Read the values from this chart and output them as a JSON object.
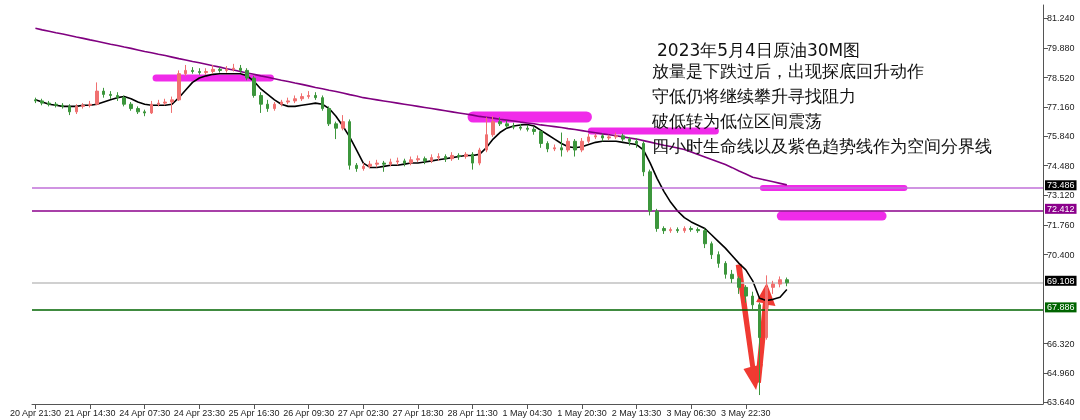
{
  "chart_data": {
    "type": "candlestick",
    "title": "2023年5月4日原油30M图",
    "annotations": [
      "放量是下跌过后，出现探底回升动作",
      "守低仍将继续攀升寻找阻力",
      "破低转为低位区间震荡",
      "四小时生命线以及紫色趋势线作为空间分界线"
    ],
    "categories": [
      "20 Apr 21:30",
      null,
      null,
      null,
      null,
      null,
      null,
      null,
      "21 Apr 14:30",
      null,
      null,
      null,
      null,
      null,
      null,
      null,
      "24 Apr 07:30",
      null,
      null,
      null,
      null,
      null,
      null,
      null,
      "24 Apr 23:30",
      null,
      null,
      null,
      null,
      null,
      null,
      null,
      "25 Apr 16:30",
      null,
      null,
      null,
      null,
      null,
      null,
      null,
      "26 Apr 09:30",
      null,
      null,
      null,
      null,
      null,
      null,
      null,
      "27 Apr 02:30",
      null,
      null,
      null,
      null,
      null,
      null,
      null,
      "27 Apr 18:30",
      null,
      null,
      null,
      null,
      null,
      null,
      null,
      "28 Apr 11:30",
      null,
      null,
      null,
      null,
      null,
      null,
      null,
      "1 May 04:30",
      null,
      null,
      null,
      null,
      null,
      null,
      null,
      "1 May 20:30",
      null,
      null,
      null,
      null,
      null,
      null,
      null,
      "2 May 13:30",
      null,
      null,
      null,
      null,
      null,
      null,
      null,
      "3 May 06:30",
      null,
      null,
      null,
      null,
      null,
      null,
      null,
      "3 May 22:30",
      null,
      null,
      null,
      null,
      null,
      null
    ],
    "series": [
      {
        "type": "candlestick",
        "colors": [
          "#3c963c",
          "#3c963c",
          "#3c963c",
          "#3c963c",
          "#3c963c",
          "#3c963c",
          "#f07070",
          "#f07070",
          "#f07070",
          "#f07070",
          "#3c963c",
          "#3c963c",
          "#3c963c",
          "#3c963c",
          "#3c963c",
          "#3c963c",
          "#3c963c",
          "#f07070",
          "#f07070",
          "#f07070",
          "#f07070",
          "#f07070",
          "#f07070",
          "#3c963c",
          "#3c963c",
          "#f07070",
          "#f07070",
          "#3c963c",
          "#f07070",
          "#f07070",
          "#3c963c",
          "#3c963c",
          "#3c963c",
          "#3c963c",
          "#3c963c",
          "#f07070",
          "#f07070",
          "#f07070",
          "#f07070",
          "#f07070",
          "#f07070",
          "#3c963c",
          "#3c963c",
          "#3c963c",
          "#3c963c",
          "#f07070",
          "#3c963c",
          "#3c963c",
          "#f07070",
          "#f07070",
          "#f07070",
          "#3c963c",
          "#f07070",
          "#f07070",
          "#3c963c",
          "#f07070",
          "#f07070",
          "#3c963c",
          "#f07070",
          "#f07070",
          "#3c963c",
          "#f07070",
          "#3c963c",
          "#f07070",
          "#3c963c",
          "#f07070",
          "#f07070",
          "#f07070",
          "#3c963c",
          "#3c963c",
          "#3c963c",
          "#3c963c",
          "#3c963c",
          "#3c963c",
          "#3c963c",
          "#3c963c",
          "#f07070",
          "#3c963c",
          "#f07070",
          "#3c963c",
          "#f07070",
          "#f07070",
          "#f07070",
          "#3c963c",
          "#f07070",
          "#f07070",
          "#3c963c",
          "#3c963c",
          "#3c963c",
          "#3c963c",
          "#3c963c",
          "#3c963c",
          "#3c963c",
          "#f07070",
          "#3c963c",
          "#f07070",
          "#3c963c",
          "#3c963c",
          "#3c963c",
          "#3c963c",
          "#3c963c",
          "#3c963c",
          "#3c963c",
          "#3c963c",
          "#3c963c",
          "#3c963c",
          "#3c963c",
          "#f07070",
          "#f07070",
          "#f07070",
          "#3c963c"
        ],
        "ohlc": [
          [
            77.5,
            77.6,
            77.35,
            77.45
          ],
          [
            77.45,
            77.55,
            77.25,
            77.35
          ],
          [
            77.35,
            77.45,
            77.2,
            77.3
          ],
          [
            77.3,
            77.4,
            77.15,
            77.25
          ],
          [
            77.25,
            77.35,
            77.1,
            77.2
          ],
          [
            77.2,
            77.3,
            76.8,
            76.95
          ],
          [
            76.95,
            77.3,
            76.85,
            77.2
          ],
          [
            77.2,
            77.35,
            77.1,
            77.25
          ],
          [
            77.25,
            77.45,
            77.15,
            77.3
          ],
          [
            77.3,
            78.3,
            77.25,
            77.9
          ],
          [
            77.9,
            78.05,
            77.6,
            77.75
          ],
          [
            77.75,
            77.9,
            77.55,
            77.7
          ],
          [
            77.7,
            77.85,
            77.45,
            77.6
          ],
          [
            77.6,
            77.7,
            77.2,
            77.3
          ],
          [
            77.3,
            77.4,
            77.0,
            77.1
          ],
          [
            77.1,
            77.2,
            76.85,
            76.95
          ],
          [
            76.95,
            77.05,
            76.75,
            76.9
          ],
          [
            76.9,
            77.45,
            76.85,
            77.3
          ],
          [
            77.3,
            77.5,
            77.2,
            77.35
          ],
          [
            77.35,
            77.55,
            77.25,
            77.4
          ],
          [
            77.4,
            77.65,
            76.9,
            77.5
          ],
          [
            77.5,
            78.85,
            77.45,
            78.7
          ],
          [
            78.7,
            79.1,
            78.6,
            78.85
          ],
          [
            78.85,
            79.0,
            78.7,
            78.8
          ],
          [
            78.8,
            78.95,
            78.65,
            78.75
          ],
          [
            78.75,
            78.95,
            78.65,
            78.8
          ],
          [
            78.8,
            79.1,
            78.7,
            78.9
          ],
          [
            78.9,
            79.0,
            78.75,
            78.85
          ],
          [
            78.85,
            79.05,
            78.75,
            78.9
          ],
          [
            78.9,
            79.15,
            78.8,
            78.95
          ],
          [
            78.95,
            79.1,
            78.75,
            78.85
          ],
          [
            78.85,
            78.95,
            78.4,
            78.5
          ],
          [
            78.5,
            78.6,
            77.6,
            77.7
          ],
          [
            77.7,
            77.85,
            76.9,
            77.3
          ],
          [
            77.3,
            77.5,
            76.95,
            77.1
          ],
          [
            77.1,
            77.4,
            77.0,
            77.3
          ],
          [
            77.3,
            77.5,
            77.2,
            77.4
          ],
          [
            77.4,
            77.6,
            77.3,
            77.45
          ],
          [
            77.45,
            77.7,
            77.35,
            77.55
          ],
          [
            77.55,
            77.8,
            77.45,
            77.65
          ],
          [
            77.65,
            77.9,
            77.55,
            77.7
          ],
          [
            77.7,
            77.85,
            77.5,
            77.6
          ],
          [
            77.6,
            77.7,
            77.0,
            77.1
          ],
          [
            77.1,
            77.2,
            76.3,
            76.4
          ],
          [
            76.4,
            76.5,
            75.7,
            76.2
          ],
          [
            76.2,
            76.8,
            76.1,
            76.5
          ],
          [
            76.5,
            76.6,
            74.3,
            74.5
          ],
          [
            74.5,
            74.6,
            74.2,
            74.35
          ],
          [
            74.35,
            74.6,
            74.25,
            74.45
          ],
          [
            74.45,
            74.7,
            74.35,
            74.55
          ],
          [
            74.55,
            74.75,
            74.4,
            74.6
          ],
          [
            74.6,
            74.7,
            74.2,
            74.55
          ],
          [
            74.55,
            74.8,
            74.45,
            74.65
          ],
          [
            74.65,
            74.85,
            74.5,
            74.7
          ],
          [
            74.7,
            74.8,
            74.45,
            74.6
          ],
          [
            74.6,
            74.9,
            74.5,
            74.75
          ],
          [
            74.75,
            74.95,
            74.65,
            74.8
          ],
          [
            74.8,
            74.9,
            74.55,
            74.7
          ],
          [
            74.7,
            75.0,
            74.6,
            74.85
          ],
          [
            74.85,
            75.05,
            74.7,
            74.9
          ],
          [
            74.9,
            75.0,
            74.65,
            74.8
          ],
          [
            74.8,
            75.1,
            74.7,
            74.95
          ],
          [
            74.95,
            75.05,
            74.75,
            74.9
          ],
          [
            74.9,
            75.1,
            74.8,
            75.0
          ],
          [
            75.0,
            75.1,
            74.3,
            74.6
          ],
          [
            74.6,
            75.3,
            74.5,
            75.2
          ],
          [
            75.2,
            76.7,
            75.1,
            75.9
          ],
          [
            75.9,
            76.75,
            75.8,
            76.5
          ],
          [
            76.5,
            76.7,
            76.3,
            76.4
          ],
          [
            76.4,
            76.55,
            76.2,
            76.3
          ],
          [
            76.3,
            76.45,
            76.15,
            76.25
          ],
          [
            76.25,
            76.4,
            76.1,
            76.2
          ],
          [
            76.2,
            76.35,
            76.05,
            76.15
          ],
          [
            76.15,
            76.25,
            75.9,
            76.05
          ],
          [
            76.05,
            76.1,
            75.3,
            75.5
          ],
          [
            75.5,
            75.6,
            75.1,
            75.25
          ],
          [
            75.25,
            75.45,
            75.15,
            75.3
          ],
          [
            75.3,
            76.0,
            74.9,
            75.2
          ],
          [
            75.2,
            75.75,
            75.1,
            75.6
          ],
          [
            75.6,
            75.7,
            74.9,
            75.2
          ],
          [
            75.2,
            75.75,
            75.1,
            75.6
          ],
          [
            75.6,
            75.95,
            75.5,
            75.8
          ],
          [
            75.8,
            75.95,
            75.7,
            75.85
          ],
          [
            75.85,
            75.95,
            75.6,
            75.75
          ],
          [
            75.75,
            75.9,
            75.65,
            75.8
          ],
          [
            75.8,
            76.0,
            75.7,
            75.85
          ],
          [
            75.85,
            75.95,
            75.6,
            75.7
          ],
          [
            75.7,
            75.8,
            75.4,
            75.6
          ],
          [
            75.6,
            75.75,
            75.3,
            75.5
          ],
          [
            75.5,
            75.6,
            74.0,
            74.2
          ],
          [
            74.2,
            74.3,
            72.2,
            72.4
          ],
          [
            72.4,
            72.5,
            71.45,
            71.6
          ],
          [
            71.6,
            71.7,
            71.35,
            71.5
          ],
          [
            71.5,
            71.65,
            71.4,
            71.55
          ],
          [
            71.55,
            71.65,
            71.4,
            71.5
          ],
          [
            71.5,
            71.7,
            71.4,
            71.6
          ],
          [
            71.6,
            71.7,
            71.45,
            71.55
          ],
          [
            71.55,
            71.65,
            71.4,
            71.5
          ],
          [
            71.5,
            71.6,
            70.7,
            70.9
          ],
          [
            70.9,
            71.0,
            70.2,
            70.4
          ],
          [
            70.4,
            70.55,
            69.8,
            70.0
          ],
          [
            70.0,
            70.1,
            69.3,
            69.5
          ],
          [
            69.5,
            69.7,
            69.1,
            69.3
          ],
          [
            69.3,
            69.4,
            68.6,
            68.9
          ],
          [
            68.9,
            69.0,
            68.2,
            68.5
          ],
          [
            68.5,
            68.7,
            67.9,
            68.1
          ],
          [
            68.1,
            68.2,
            63.96,
            66.6
          ],
          [
            66.6,
            69.45,
            66.5,
            68.9
          ],
          [
            68.9,
            69.2,
            68.6,
            69.05
          ],
          [
            69.05,
            69.4,
            68.9,
            69.25
          ],
          [
            69.25,
            69.35,
            68.95,
            69.108
          ]
        ]
      },
      {
        "type": "line",
        "color": "#000000",
        "values": [
          77.5,
          77.4,
          77.3,
          77.25,
          77.2,
          77.2,
          77.2,
          77.25,
          77.25,
          77.3,
          77.4,
          77.5,
          77.6,
          77.65,
          77.55,
          77.4,
          77.3,
          77.25,
          77.25,
          77.25,
          77.3,
          77.6,
          77.95,
          78.3,
          78.5,
          78.6,
          78.67,
          78.7,
          78.7,
          78.7,
          78.7,
          78.6,
          78.35,
          78.0,
          77.75,
          77.5,
          77.3,
          77.2,
          77.2,
          77.25,
          77.3,
          77.35,
          77.3,
          77.1,
          76.75,
          76.3,
          75.8,
          75.2,
          74.6,
          74.4,
          74.4,
          74.45,
          74.5,
          74.5,
          74.55,
          74.6,
          74.6,
          74.65,
          74.7,
          74.75,
          74.8,
          74.85,
          74.9,
          74.95,
          74.95,
          75.0,
          75.3,
          75.7,
          76.0,
          76.2,
          76.3,
          76.35,
          76.37,
          76.3,
          76.1,
          75.9,
          75.7,
          75.5,
          75.35,
          75.3,
          75.35,
          75.45,
          75.55,
          75.6,
          75.6,
          75.6,
          75.55,
          75.5,
          75.45,
          75.2,
          74.6,
          73.9,
          73.3,
          72.8,
          72.4,
          72.1,
          71.9,
          71.75,
          71.6,
          71.3,
          71.0,
          70.7,
          70.35,
          70.0,
          69.7,
          69.2,
          68.4,
          68.3,
          68.35,
          68.45,
          68.8
        ]
      },
      {
        "type": "line",
        "color": "#800080",
        "values": [
          80.78,
          80.71,
          80.65,
          80.58,
          80.52,
          80.45,
          80.38,
          80.32,
          80.25,
          80.19,
          80.12,
          80.05,
          79.99,
          79.92,
          79.86,
          79.79,
          79.72,
          79.66,
          79.59,
          79.53,
          79.46,
          79.39,
          79.33,
          79.26,
          79.2,
          79.13,
          79.06,
          79.0,
          78.93,
          78.87,
          78.8,
          78.73,
          78.67,
          78.6,
          78.54,
          78.47,
          78.4,
          78.34,
          78.27,
          78.21,
          78.14,
          78.07,
          78.01,
          77.94,
          77.88,
          77.81,
          77.74,
          77.68,
          77.6,
          77.55,
          77.5,
          77.45,
          77.4,
          77.35,
          77.3,
          77.25,
          77.2,
          77.15,
          77.1,
          77.05,
          77.0,
          76.95,
          76.9,
          76.85,
          76.8,
          76.74,
          76.7,
          76.66,
          76.61,
          76.57,
          76.53,
          76.48,
          76.44,
          76.4,
          76.35,
          76.31,
          76.27,
          76.23,
          76.18,
          76.14,
          76.09,
          76.04,
          75.99,
          75.94,
          75.9,
          75.85,
          75.8,
          75.75,
          75.7,
          75.63,
          75.56,
          75.49,
          75.42,
          75.36,
          75.29,
          75.22,
          75.11,
          74.99,
          74.88,
          74.76,
          74.65,
          74.53,
          74.39,
          74.24,
          74.1,
          73.95,
          73.88,
          73.81,
          73.74,
          73.67,
          73.6
        ]
      }
    ],
    "ylim": [
      63.55,
      81.85
    ],
    "yticks": [
      {
        "value": 63.64,
        "label": "63.640"
      },
      {
        "value": 64.96,
        "label": "64.960"
      },
      {
        "value": 66.32,
        "label": "66.320"
      },
      {
        "value": 70.4,
        "label": "70.400"
      },
      {
        "value": 71.76,
        "label": "71.760"
      },
      {
        "value": 73.12,
        "label": "73.120"
      },
      {
        "value": 74.48,
        "label": "74.480"
      },
      {
        "value": 75.84,
        "label": "75.840"
      },
      {
        "value": 77.16,
        "label": "77.160"
      },
      {
        "value": 78.52,
        "label": "78.520"
      },
      {
        "value": 79.88,
        "label": "79.880"
      },
      {
        "value": 81.24,
        "label": "81.240"
      }
    ],
    "ref_lines": [
      {
        "axis": "y",
        "value": 73.486,
        "label": "73.486",
        "color": "#c070d8",
        "line_style": "solid"
      },
      {
        "axis": "y",
        "value": 72.412,
        "label": "72.412",
        "color": "#8b008b",
        "line_style": "solid"
      },
      {
        "axis": "y",
        "value": 69.108,
        "label": "69.108",
        "color": "#c0c0c0",
        "line_style": "solid"
      },
      {
        "axis": "y",
        "value": 67.886,
        "label": "67.886",
        "color": "#006400",
        "line_style": "solid"
      }
    ],
    "grid": false,
    "marker": "none"
  }
}
